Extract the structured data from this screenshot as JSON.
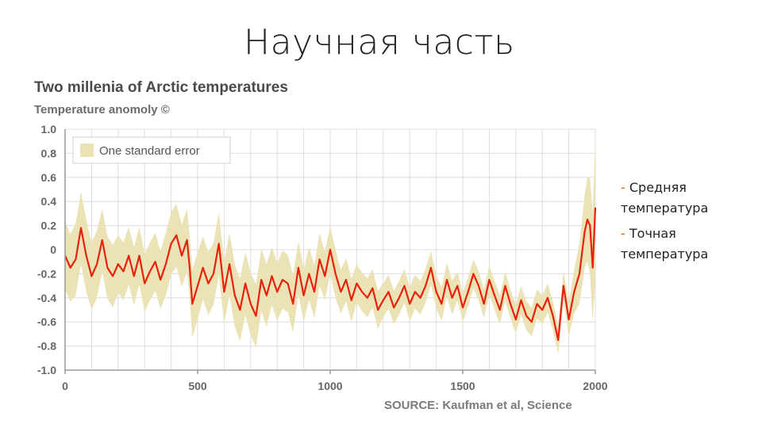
{
  "slide": {
    "title": "Научная часть",
    "notes": [
      {
        "dash": "-",
        "text": "Средняя температура"
      },
      {
        "dash": "-",
        "text": "Точная температура"
      }
    ]
  },
  "colors": {
    "line": "#e8200c",
    "band": "#ebe3b5",
    "grid": "#dcdcdc",
    "axis": "#9a9a9a",
    "accent_dash": "#e06010"
  },
  "chart_data": {
    "type": "line",
    "title": "Two millenia of Arctic temperatures",
    "ylabel": "Temperature anomoly ©",
    "source": "SOURCE: Kaufman et al, Science",
    "xlim": [
      0,
      2000
    ],
    "ylim": [
      -1.0,
      1.0
    ],
    "xticks": [
      "0",
      "500",
      "1000",
      "1500",
      "2000"
    ],
    "yticks": [
      "1.0",
      "0.8",
      "0.6",
      "0.4",
      "0.2",
      "0",
      "-0.2",
      "-0.4",
      "-0.6",
      "-0.8",
      "-1.0"
    ],
    "grid": true,
    "legend": {
      "placement": "top-left",
      "entries": [
        "One standard error"
      ]
    },
    "series": [
      {
        "x": [
          0,
          20,
          40,
          60,
          80,
          100,
          120,
          140,
          160,
          180,
          200,
          220,
          240,
          260,
          280,
          300,
          320,
          340,
          360,
          380,
          400,
          420,
          440,
          460,
          470,
          480,
          500,
          520,
          540,
          560,
          580,
          600,
          620,
          640,
          660,
          680,
          700,
          720,
          740,
          760,
          780,
          800,
          820,
          840,
          860,
          880,
          900,
          920,
          940,
          960,
          980,
          1000,
          1020,
          1040,
          1060,
          1080,
          1100,
          1120,
          1140,
          1160,
          1180,
          1200,
          1220,
          1240,
          1260,
          1280,
          1300,
          1320,
          1340,
          1360,
          1380,
          1400,
          1420,
          1440,
          1460,
          1480,
          1500,
          1520,
          1540,
          1560,
          1580,
          1600,
          1620,
          1640,
          1660,
          1680,
          1700,
          1720,
          1740,
          1760,
          1780,
          1800,
          1820,
          1840,
          1860,
          1880,
          1900,
          1920,
          1940,
          1960,
          1970,
          1980,
          1990,
          2000
        ],
        "values": [
          -0.05,
          -0.15,
          -0.08,
          0.18,
          -0.05,
          -0.22,
          -0.12,
          0.08,
          -0.15,
          -0.22,
          -0.12,
          -0.18,
          -0.05,
          -0.22,
          -0.05,
          -0.28,
          -0.18,
          -0.1,
          -0.25,
          -0.12,
          0.05,
          0.12,
          -0.05,
          0.08,
          -0.15,
          -0.45,
          -0.3,
          -0.15,
          -0.28,
          -0.2,
          0.05,
          -0.35,
          -0.12,
          -0.38,
          -0.5,
          -0.28,
          -0.45,
          -0.55,
          -0.25,
          -0.38,
          -0.22,
          -0.35,
          -0.25,
          -0.28,
          -0.45,
          -0.15,
          -0.38,
          -0.2,
          -0.35,
          -0.08,
          -0.22,
          0.0,
          -0.2,
          -0.35,
          -0.25,
          -0.42,
          -0.28,
          -0.35,
          -0.4,
          -0.32,
          -0.5,
          -0.42,
          -0.35,
          -0.48,
          -0.4,
          -0.3,
          -0.45,
          -0.35,
          -0.4,
          -0.3,
          -0.15,
          -0.35,
          -0.45,
          -0.25,
          -0.4,
          -0.3,
          -0.48,
          -0.35,
          -0.2,
          -0.3,
          -0.45,
          -0.25,
          -0.38,
          -0.5,
          -0.3,
          -0.45,
          -0.58,
          -0.42,
          -0.55,
          -0.6,
          -0.45,
          -0.5,
          -0.4,
          -0.55,
          -0.75,
          -0.3,
          -0.58,
          -0.35,
          -0.2,
          0.15,
          0.25,
          0.2,
          -0.15,
          0.35
        ],
        "error": [
          0.28,
          0.28,
          0.3,
          0.3,
          0.3,
          0.28,
          0.28,
          0.26,
          0.26,
          0.26,
          0.24,
          0.24,
          0.24,
          0.24,
          0.24,
          0.24,
          0.24,
          0.24,
          0.24,
          0.26,
          0.26,
          0.26,
          0.26,
          0.26,
          0.26,
          0.28,
          0.28,
          0.26,
          0.26,
          0.26,
          0.26,
          0.26,
          0.26,
          0.26,
          0.26,
          0.26,
          0.26,
          0.26,
          0.26,
          0.26,
          0.24,
          0.24,
          0.24,
          0.24,
          0.24,
          0.22,
          0.22,
          0.22,
          0.22,
          0.22,
          0.2,
          0.2,
          0.2,
          0.18,
          0.18,
          0.18,
          0.16,
          0.16,
          0.16,
          0.16,
          0.16,
          0.14,
          0.14,
          0.14,
          0.14,
          0.14,
          0.14,
          0.14,
          0.14,
          0.14,
          0.14,
          0.14,
          0.14,
          0.14,
          0.14,
          0.12,
          0.12,
          0.12,
          0.12,
          0.12,
          0.12,
          0.12,
          0.12,
          0.12,
          0.12,
          0.12,
          0.12,
          0.12,
          0.12,
          0.12,
          0.12,
          0.12,
          0.12,
          0.12,
          0.12,
          0.12,
          0.14,
          0.18,
          0.25,
          0.3,
          0.35,
          0.4,
          0.45,
          0.6
        ]
      }
    ]
  }
}
